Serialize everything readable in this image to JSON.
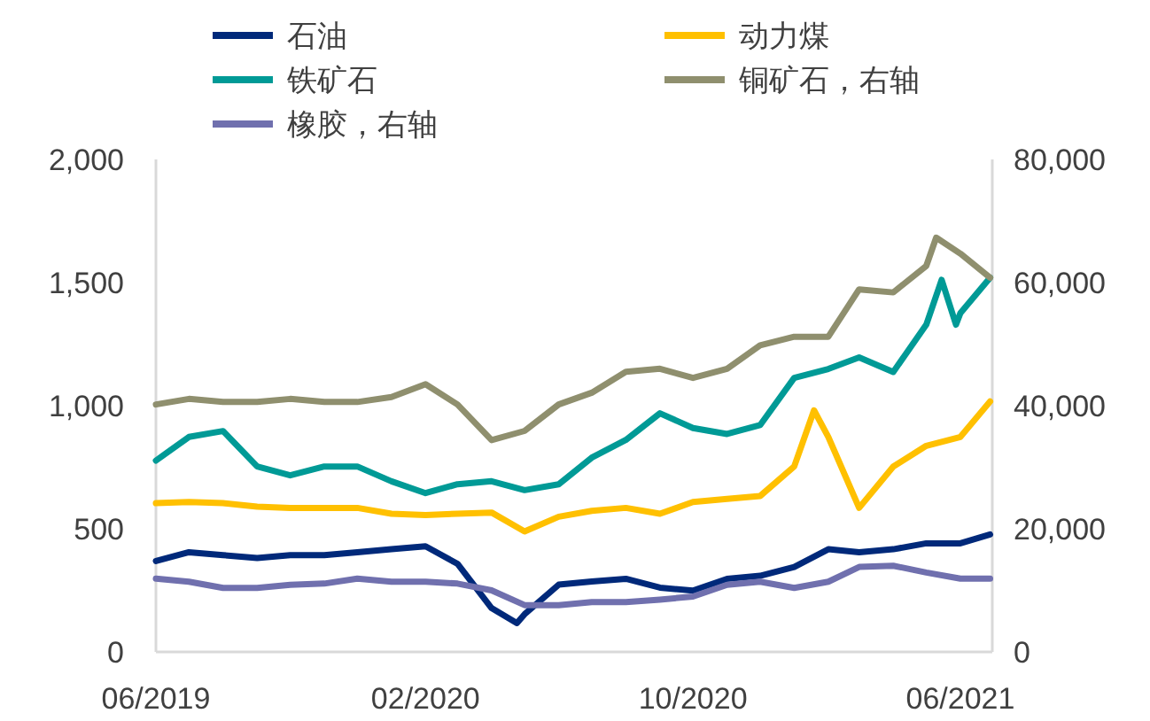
{
  "chart_data": {
    "type": "line",
    "legend": "top",
    "line_style": "solid",
    "marker": "none",
    "xlim": [
      "2019-06-01",
      "2021-06-30"
    ],
    "xticks": [
      {
        "value": "2019-06-01",
        "label": "06/2019"
      },
      {
        "value": "2020-02-01",
        "label": "02/2020"
      },
      {
        "value": "2020-10-01",
        "label": "10/2020"
      },
      {
        "value": "2021-06-01",
        "label": "06/2021"
      }
    ],
    "ylim": [
      0,
      2000
    ],
    "yticks": [
      0,
      500,
      {
        "value": 1000,
        "label": "1,000"
      },
      {
        "value": 1500,
        "label": "1,500"
      },
      {
        "value": 2000,
        "label": "2,000"
      }
    ],
    "y2lim": [
      0,
      80000
    ],
    "y2ticks": [
      0,
      {
        "value": 20000,
        "label": "20,000"
      },
      {
        "value": 40000,
        "label": "40,000"
      },
      {
        "value": 60000,
        "label": "60,000"
      },
      {
        "value": 80000,
        "label": "80,000"
      }
    ],
    "series": [
      {
        "name": "石油",
        "color": "#00297a",
        "x": [
          "2019-06-01",
          "2019-07-01",
          "2019-08-01",
          "2019-09-01",
          "2019-10-01",
          "2019-11-01",
          "2019-12-01",
          "2020-01-01",
          "2020-02-01",
          "2020-03-01",
          "2020-04-01",
          "2020-04-24",
          "2020-05-01",
          "2020-06-01",
          "2020-07-01",
          "2020-08-01",
          "2020-09-01",
          "2020-10-01",
          "2020-11-01",
          "2020-12-01",
          "2021-01-01",
          "2021-02-01",
          "2021-03-01",
          "2021-04-01",
          "2021-05-01",
          "2021-06-01",
          "2021-06-28"
        ],
        "values": [
          369,
          405,
          393,
          381,
          393,
          393,
          405,
          417,
          429,
          358,
          178,
          117,
          153,
          273,
          286,
          297,
          261,
          249,
          297,
          309,
          345,
          417,
          405,
          417,
          441,
          441,
          477
        ]
      },
      {
        "name": "动力煤",
        "color": "#ffc000",
        "x": [
          "2019-06-01",
          "2019-07-01",
          "2019-08-01",
          "2019-09-01",
          "2019-10-01",
          "2019-11-01",
          "2019-12-01",
          "2020-01-01",
          "2020-02-01",
          "2020-03-01",
          "2020-04-01",
          "2020-05-01",
          "2020-06-01",
          "2020-07-01",
          "2020-08-01",
          "2020-09-01",
          "2020-10-01",
          "2020-11-01",
          "2020-12-01",
          "2021-01-01",
          "2021-01-19",
          "2021-02-01",
          "2021-03-01",
          "2021-04-01",
          "2021-05-01",
          "2021-06-01",
          "2021-06-28"
        ],
        "values": [
          604,
          609,
          604,
          590,
          585,
          585,
          585,
          561,
          556,
          561,
          566,
          489,
          549,
          573,
          585,
          561,
          609,
          621,
          633,
          753,
          981,
          873,
          585,
          753,
          837,
          873,
          1017
        ]
      },
      {
        "name": "铁矿石",
        "color": "#009a96",
        "x": [
          "2019-06-01",
          "2019-07-01",
          "2019-08-01",
          "2019-09-01",
          "2019-10-01",
          "2019-11-01",
          "2019-12-01",
          "2020-01-01",
          "2020-02-01",
          "2020-03-01",
          "2020-04-01",
          "2020-05-01",
          "2020-06-01",
          "2020-07-01",
          "2020-08-01",
          "2020-09-01",
          "2020-10-01",
          "2020-11-01",
          "2020-12-01",
          "2021-01-01",
          "2021-02-01",
          "2021-03-01",
          "2021-04-01",
          "2021-05-01",
          "2021-05-15",
          "2021-05-28",
          "2021-06-01",
          "2021-06-28"
        ],
        "values": [
          777,
          873,
          897,
          753,
          717,
          753,
          753,
          693,
          645,
          681,
          693,
          657,
          681,
          789,
          861,
          969,
          909,
          885,
          921,
          1113,
          1149,
          1196,
          1137,
          1329,
          1511,
          1329,
          1376,
          1520
        ]
      },
      {
        "name": "铜矿石，右轴",
        "color": "#8f8f6e",
        "axis": "y2",
        "x": [
          "2019-06-01",
          "2019-07-01",
          "2019-08-01",
          "2019-09-01",
          "2019-10-01",
          "2019-11-01",
          "2019-12-01",
          "2020-01-01",
          "2020-02-01",
          "2020-03-01",
          "2020-04-01",
          "2020-05-01",
          "2020-06-01",
          "2020-07-01",
          "2020-08-01",
          "2020-09-01",
          "2020-10-01",
          "2020-11-01",
          "2020-12-01",
          "2021-01-01",
          "2021-02-01",
          "2021-03-01",
          "2021-04-01",
          "2021-05-01",
          "2021-05-10",
          "2021-06-01",
          "2021-06-28"
        ],
        "values": [
          40200,
          41100,
          40600,
          40600,
          41100,
          40600,
          40600,
          41400,
          43500,
          40200,
          34400,
          35900,
          40200,
          42100,
          45500,
          46000,
          44500,
          46000,
          49800,
          51200,
          51200,
          58900,
          58400,
          62700,
          67300,
          64700,
          60800
        ]
      },
      {
        "name": "橡胶，右轴",
        "color": "#7070ae",
        "axis": "y2",
        "x": [
          "2019-06-01",
          "2019-07-01",
          "2019-08-01",
          "2019-09-01",
          "2019-10-01",
          "2019-11-01",
          "2019-12-01",
          "2020-01-01",
          "2020-02-01",
          "2020-03-01",
          "2020-04-01",
          "2020-05-01",
          "2020-06-01",
          "2020-07-01",
          "2020-08-01",
          "2020-09-01",
          "2020-10-01",
          "2020-11-01",
          "2020-12-01",
          "2021-01-01",
          "2021-02-01",
          "2021-03-01",
          "2021-04-01",
          "2021-05-01",
          "2021-06-01",
          "2021-06-28"
        ],
        "values": [
          11900,
          11400,
          10400,
          10400,
          10900,
          11100,
          11900,
          11400,
          11400,
          11100,
          10000,
          7600,
          7600,
          8100,
          8100,
          8500,
          9000,
          10900,
          11400,
          10400,
          11400,
          13800,
          14000,
          12900,
          11900,
          11900
        ]
      }
    ]
  }
}
